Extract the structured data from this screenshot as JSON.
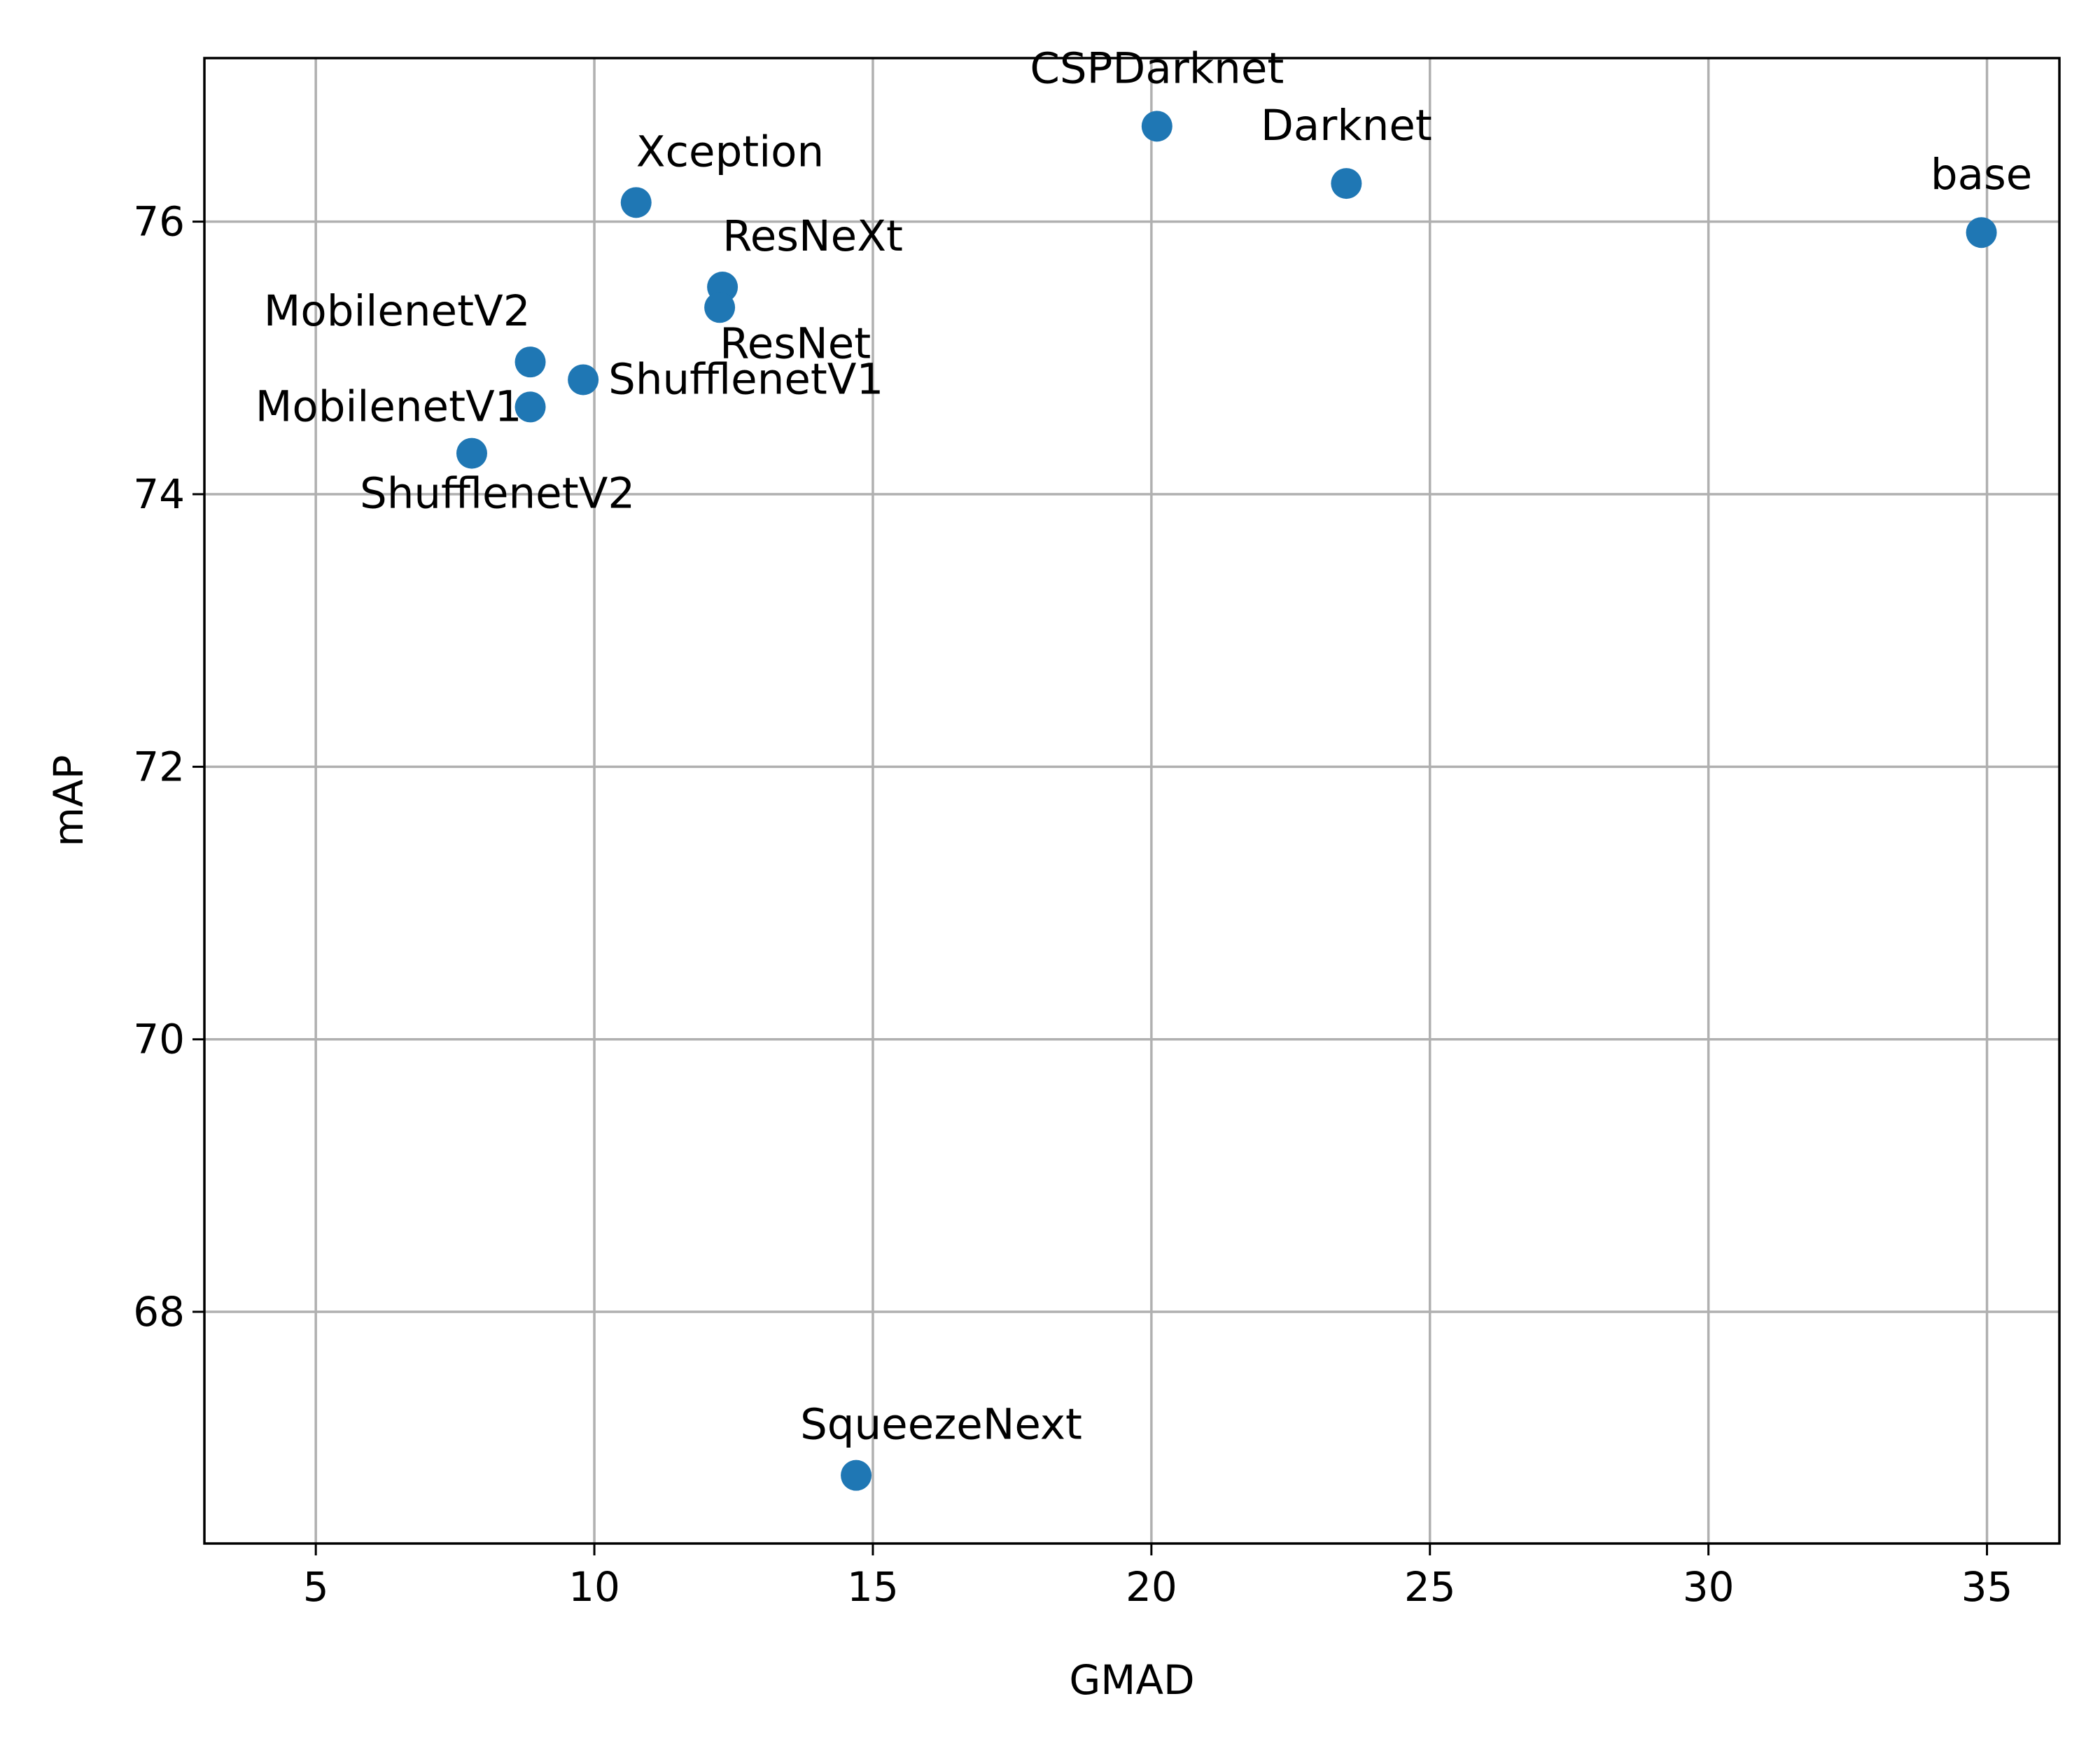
{
  "chart_data": {
    "type": "scatter",
    "title": "",
    "xlabel": "GMAD",
    "ylabel": "mAP",
    "xlim": [
      3,
      36.3
    ],
    "ylim": [
      66.3,
      77.2
    ],
    "xticks": [
      5,
      10,
      15,
      20,
      25,
      30,
      35
    ],
    "yticks": [
      68,
      70,
      72,
      74,
      76
    ],
    "grid": true,
    "marker_color": "#1f77b4",
    "points": [
      {
        "label": "CSPDarknet",
        "x": 20.1,
        "y": 76.7,
        "label_pos": "above"
      },
      {
        "label": "Darknet",
        "x": 23.5,
        "y": 76.28,
        "label_pos": "above"
      },
      {
        "label": "base",
        "x": 34.9,
        "y": 75.92,
        "label_pos": "above"
      },
      {
        "label": "Xception",
        "x": 10.75,
        "y": 76.14,
        "label_pos": "above-right"
      },
      {
        "label": "ResNeXt",
        "x": 12.3,
        "y": 75.52,
        "label_pos": "above-right"
      },
      {
        "label": "ResNet",
        "x": 12.25,
        "y": 75.37,
        "label_pos": "below-right"
      },
      {
        "label": "MobilenetV2",
        "x": 8.85,
        "y": 74.97,
        "label_pos": "above-left"
      },
      {
        "label": "ShufflenetV1",
        "x": 9.8,
        "y": 74.84,
        "label_pos": "right"
      },
      {
        "label": "MobilenetV1",
        "x": 8.85,
        "y": 74.64,
        "label_pos": "left"
      },
      {
        "label": "ShufflenetV2",
        "x": 7.8,
        "y": 74.3,
        "label_pos": "below-right"
      },
      {
        "label": "SqueezeNext",
        "x": 14.7,
        "y": 66.8,
        "label_pos": "above-right"
      }
    ]
  }
}
